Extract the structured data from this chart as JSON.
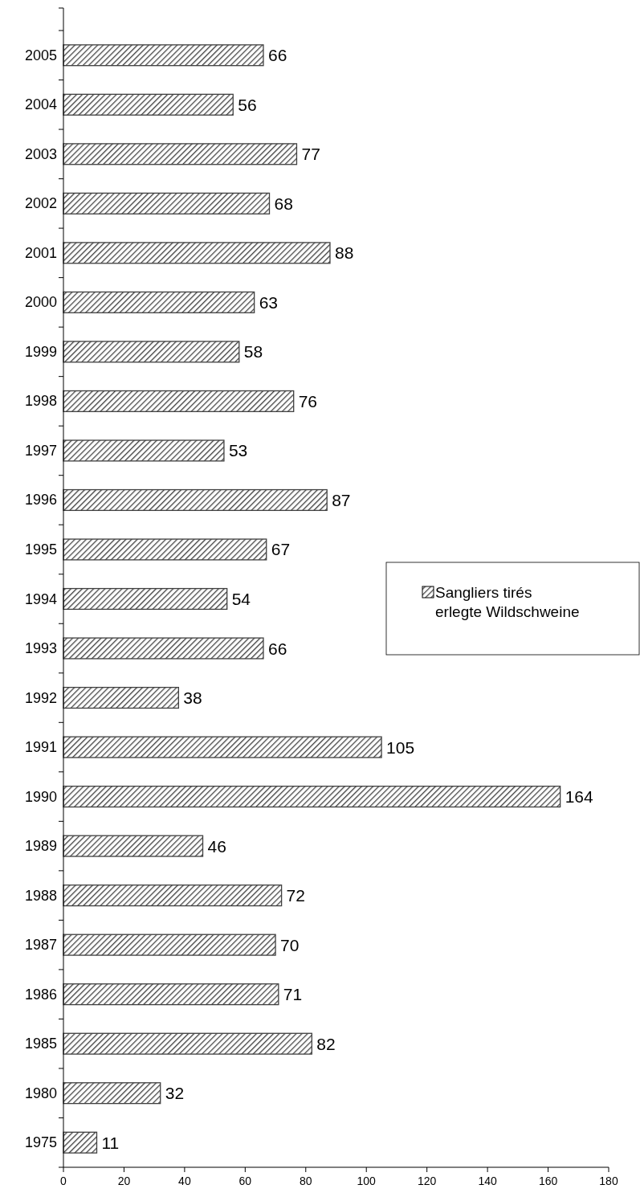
{
  "chart_data": {
    "type": "bar",
    "orientation": "horizontal",
    "categories": [
      "2005",
      "2004",
      "2003",
      "2002",
      "2001",
      "2000",
      "1999",
      "1998",
      "1997",
      "1996",
      "1995",
      "1994",
      "1993",
      "1992",
      "1991",
      "1990",
      "1989",
      "1988",
      "1987",
      "1986",
      "1985",
      "1980",
      "1975"
    ],
    "series": [
      {
        "name": "Sangliers tirés\nerlegte Wildschweine",
        "color": "#404040",
        "values": [
          66,
          56,
          77,
          68,
          88,
          63,
          58,
          76,
          53,
          87,
          67,
          54,
          66,
          38,
          105,
          164,
          46,
          72,
          70,
          71,
          82,
          32,
          11
        ]
      }
    ],
    "xlim": [
      0,
      180
    ],
    "xticks": [
      0,
      20,
      40,
      60,
      80,
      100,
      120,
      140,
      160,
      180
    ],
    "data_labels": true,
    "legend": "right",
    "grid": false
  }
}
